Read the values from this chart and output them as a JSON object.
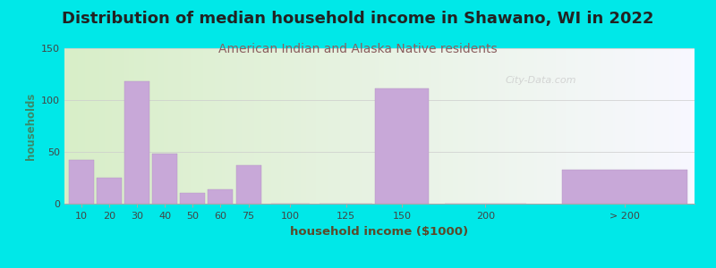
{
  "title": "Distribution of median household income in Shawano, WI in 2022",
  "subtitle": "American Indian and Alaska Native residents",
  "xlabel": "household income ($1000)",
  "ylabel": "households",
  "bar_labels": [
    "10",
    "20",
    "30",
    "40",
    "50",
    "60",
    "75",
    "100",
    "125",
    "150",
    "200",
    "> 200"
  ],
  "bar_values": [
    42,
    25,
    118,
    48,
    10,
    14,
    37,
    0,
    0,
    111,
    0,
    33
  ],
  "bar_color": "#c8a8d8",
  "bg_outer": "#00e8e8",
  "ylim": [
    0,
    150
  ],
  "yticks": [
    0,
    50,
    100,
    150
  ],
  "title_fontsize": 13,
  "subtitle_fontsize": 10,
  "title_color": "#222222",
  "subtitle_color": "#8b6060",
  "ylabel_color": "#3a8a6a",
  "xlabel_color": "#5a4a2a",
  "watermark": "City-Data.com"
}
